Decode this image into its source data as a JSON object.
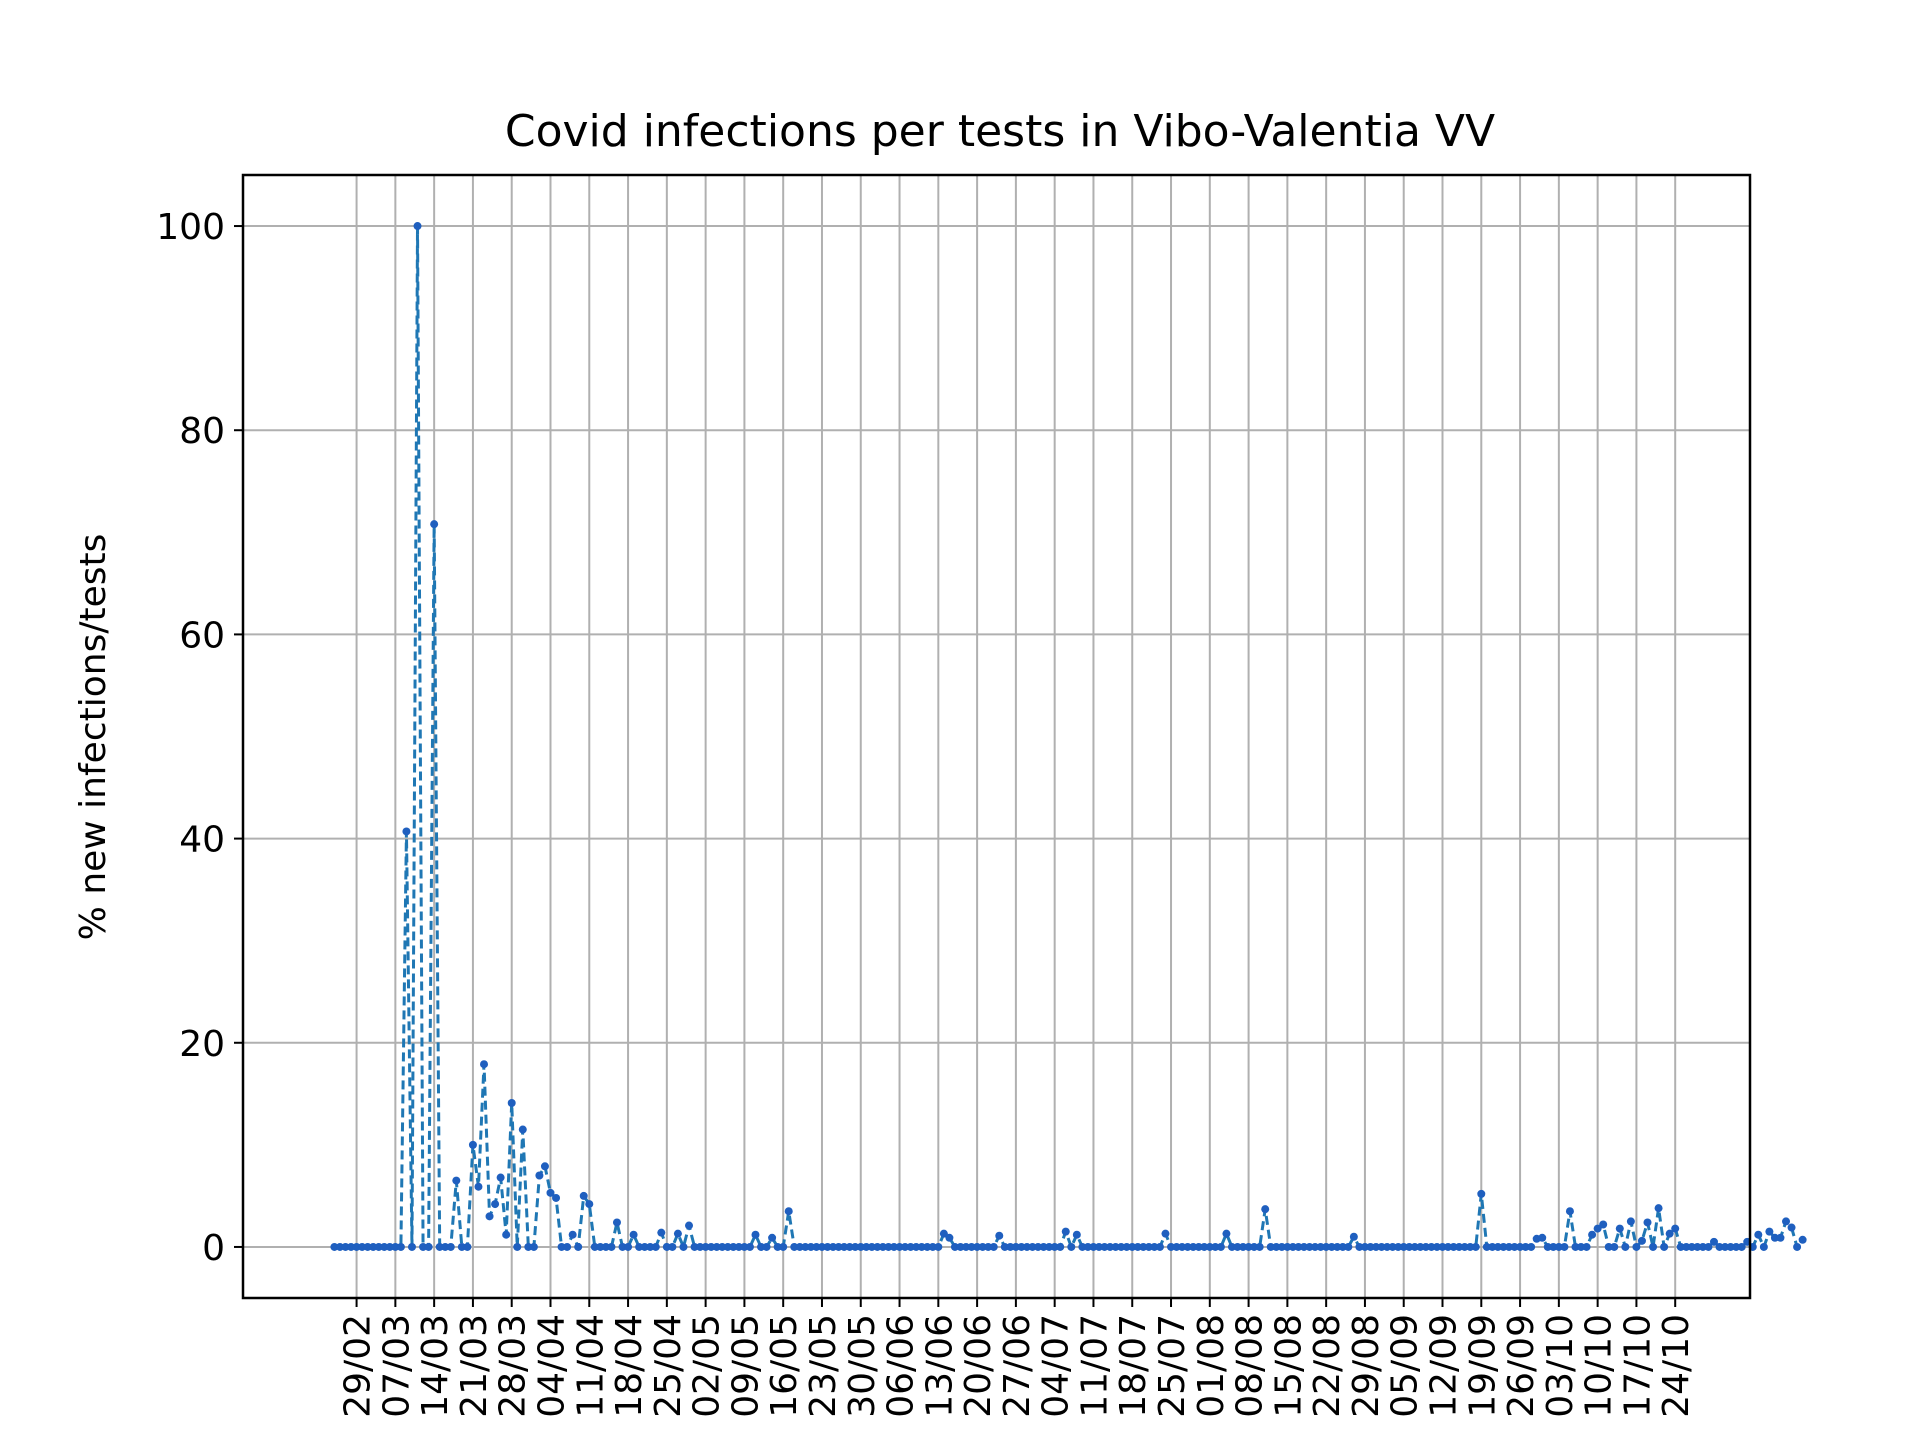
{
  "chart_data": {
    "type": "line",
    "title": "Covid infections per tests in Vibo-Valentia VV",
    "xlabel": "",
    "ylabel": "% new infections/tests",
    "ylim": [
      -5,
      105
    ],
    "yticks": [
      0,
      20,
      40,
      60,
      80,
      100
    ],
    "xticks": [
      "29/02",
      "07/03",
      "14/03",
      "21/03",
      "28/03",
      "04/04",
      "11/04",
      "18/04",
      "25/04",
      "02/05",
      "09/05",
      "16/05",
      "23/05",
      "30/05",
      "06/06",
      "13/06",
      "20/06",
      "27/06",
      "04/07",
      "11/07",
      "18/07",
      "25/07",
      "01/08",
      "08/08",
      "15/08",
      "22/08",
      "29/08",
      "05/09",
      "12/09",
      "19/09",
      "26/09",
      "03/10",
      "10/10",
      "17/10",
      "24/10"
    ],
    "xlim_days": [
      -16.5,
      255.5
    ],
    "grid": true,
    "line_style": "dashed",
    "marker": "point",
    "colors": {
      "line": "#1f77b4",
      "marker": "#1f5fbf",
      "grid": "#b0b0b0"
    },
    "series": [
      {
        "name": "",
        "start_date": "25/02",
        "values": [
          0,
          0,
          0,
          0,
          0,
          0,
          0,
          0,
          0,
          0,
          0,
          0,
          0,
          40.7,
          0,
          100,
          0,
          0,
          70.8,
          0,
          0,
          0,
          6.5,
          0,
          0,
          10,
          5.9,
          17.9,
          3,
          4.2,
          6.8,
          1.2,
          14.1,
          0,
          11.5,
          0,
          0,
          7,
          7.9,
          5.3,
          4.8,
          0,
          0,
          1.2,
          0,
          5,
          4.2,
          0,
          0,
          0,
          0,
          2.4,
          0,
          0,
          1.2,
          0,
          0,
          0,
          0,
          1.4,
          0,
          0,
          1.3,
          0,
          2.1,
          0,
          0,
          0,
          0,
          0,
          0,
          0,
          0,
          0,
          0,
          0,
          1.2,
          0,
          0,
          0.9,
          0,
          0,
          3.5,
          0,
          0,
          0,
          0,
          0,
          0,
          0,
          0,
          0,
          0,
          0,
          0,
          0,
          0,
          0,
          0,
          0,
          0,
          0,
          0,
          0,
          0,
          0,
          0,
          0,
          0,
          0,
          1.3,
          0.9,
          0,
          0,
          0,
          0,
          0,
          0,
          0,
          0,
          1.1,
          0,
          0,
          0,
          0,
          0,
          0,
          0,
          0,
          0,
          0,
          0,
          1.5,
          0,
          1.2,
          0,
          0,
          0,
          0,
          0,
          0,
          0,
          0,
          0,
          0,
          0,
          0,
          0,
          0,
          0,
          1.3,
          0,
          0,
          0,
          0,
          0,
          0,
          0,
          0,
          0,
          0,
          1.3,
          0,
          0,
          0,
          0,
          0,
          0,
          3.7,
          0,
          0,
          0,
          0,
          0,
          0,
          0,
          0,
          0,
          0,
          0,
          0,
          0,
          0,
          0,
          1,
          0,
          0,
          0,
          0,
          0,
          0,
          0,
          0,
          0,
          0,
          0,
          0,
          0,
          0,
          0,
          0,
          0,
          0,
          0,
          0,
          0,
          0,
          5.2,
          0,
          0,
          0,
          0,
          0,
          0,
          0,
          0,
          0,
          0.8,
          0.9,
          0,
          0,
          0,
          0,
          3.5,
          0,
          0,
          0,
          1.2,
          1.8,
          2.2,
          0,
          0,
          1.8,
          0,
          2.5,
          0,
          0.6,
          2.4,
          0,
          3.8,
          0,
          1.3,
          1.8,
          0,
          0,
          0,
          0,
          0,
          0,
          0.5,
          0,
          0,
          0,
          0,
          0,
          0.5,
          0,
          1.2,
          0,
          1.5,
          0.9,
          0.9,
          2.5,
          1.9,
          0,
          0.7
        ]
      }
    ]
  }
}
